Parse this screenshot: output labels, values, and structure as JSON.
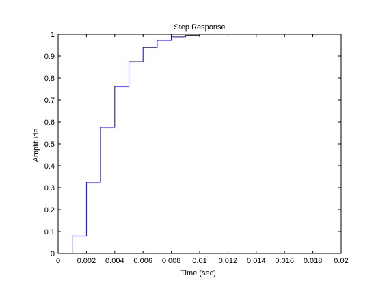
{
  "chart_data": {
    "type": "line",
    "title": "Step Response",
    "xlabel": "Time (sec)",
    "ylabel": "Amplitude",
    "xlim": [
      0,
      0.02
    ],
    "ylim": [
      0,
      1
    ],
    "xticks": [
      0,
      0.002,
      0.004,
      0.006,
      0.008,
      0.01,
      0.012,
      0.014,
      0.016,
      0.018,
      0.02
    ],
    "xtick_labels": [
      "0",
      "0.002",
      "0.004",
      "0.006",
      "0.008",
      "0.01",
      "0.012",
      "0.014",
      "0.016",
      "0.018",
      "0.02"
    ],
    "yticks": [
      0,
      0.1,
      0.2,
      0.3,
      0.4,
      0.5,
      0.6,
      0.7,
      0.8,
      0.9,
      1
    ],
    "ytick_labels": [
      "0",
      "0.1",
      "0.2",
      "0.3",
      "0.4",
      "0.5",
      "0.6",
      "0.7",
      "0.8",
      "0.9",
      "1"
    ],
    "grid": false,
    "step": "post",
    "series": [
      {
        "color": "#0000ff",
        "x": [
          0,
          0.001,
          0.002,
          0.003,
          0.004,
          0.005,
          0.006,
          0.007,
          0.008,
          0.009,
          0.01
        ],
        "y": [
          0,
          0.08,
          0.325,
          0.575,
          0.762,
          0.875,
          0.94,
          0.972,
          0.988,
          0.995,
          0.998
        ]
      }
    ]
  }
}
